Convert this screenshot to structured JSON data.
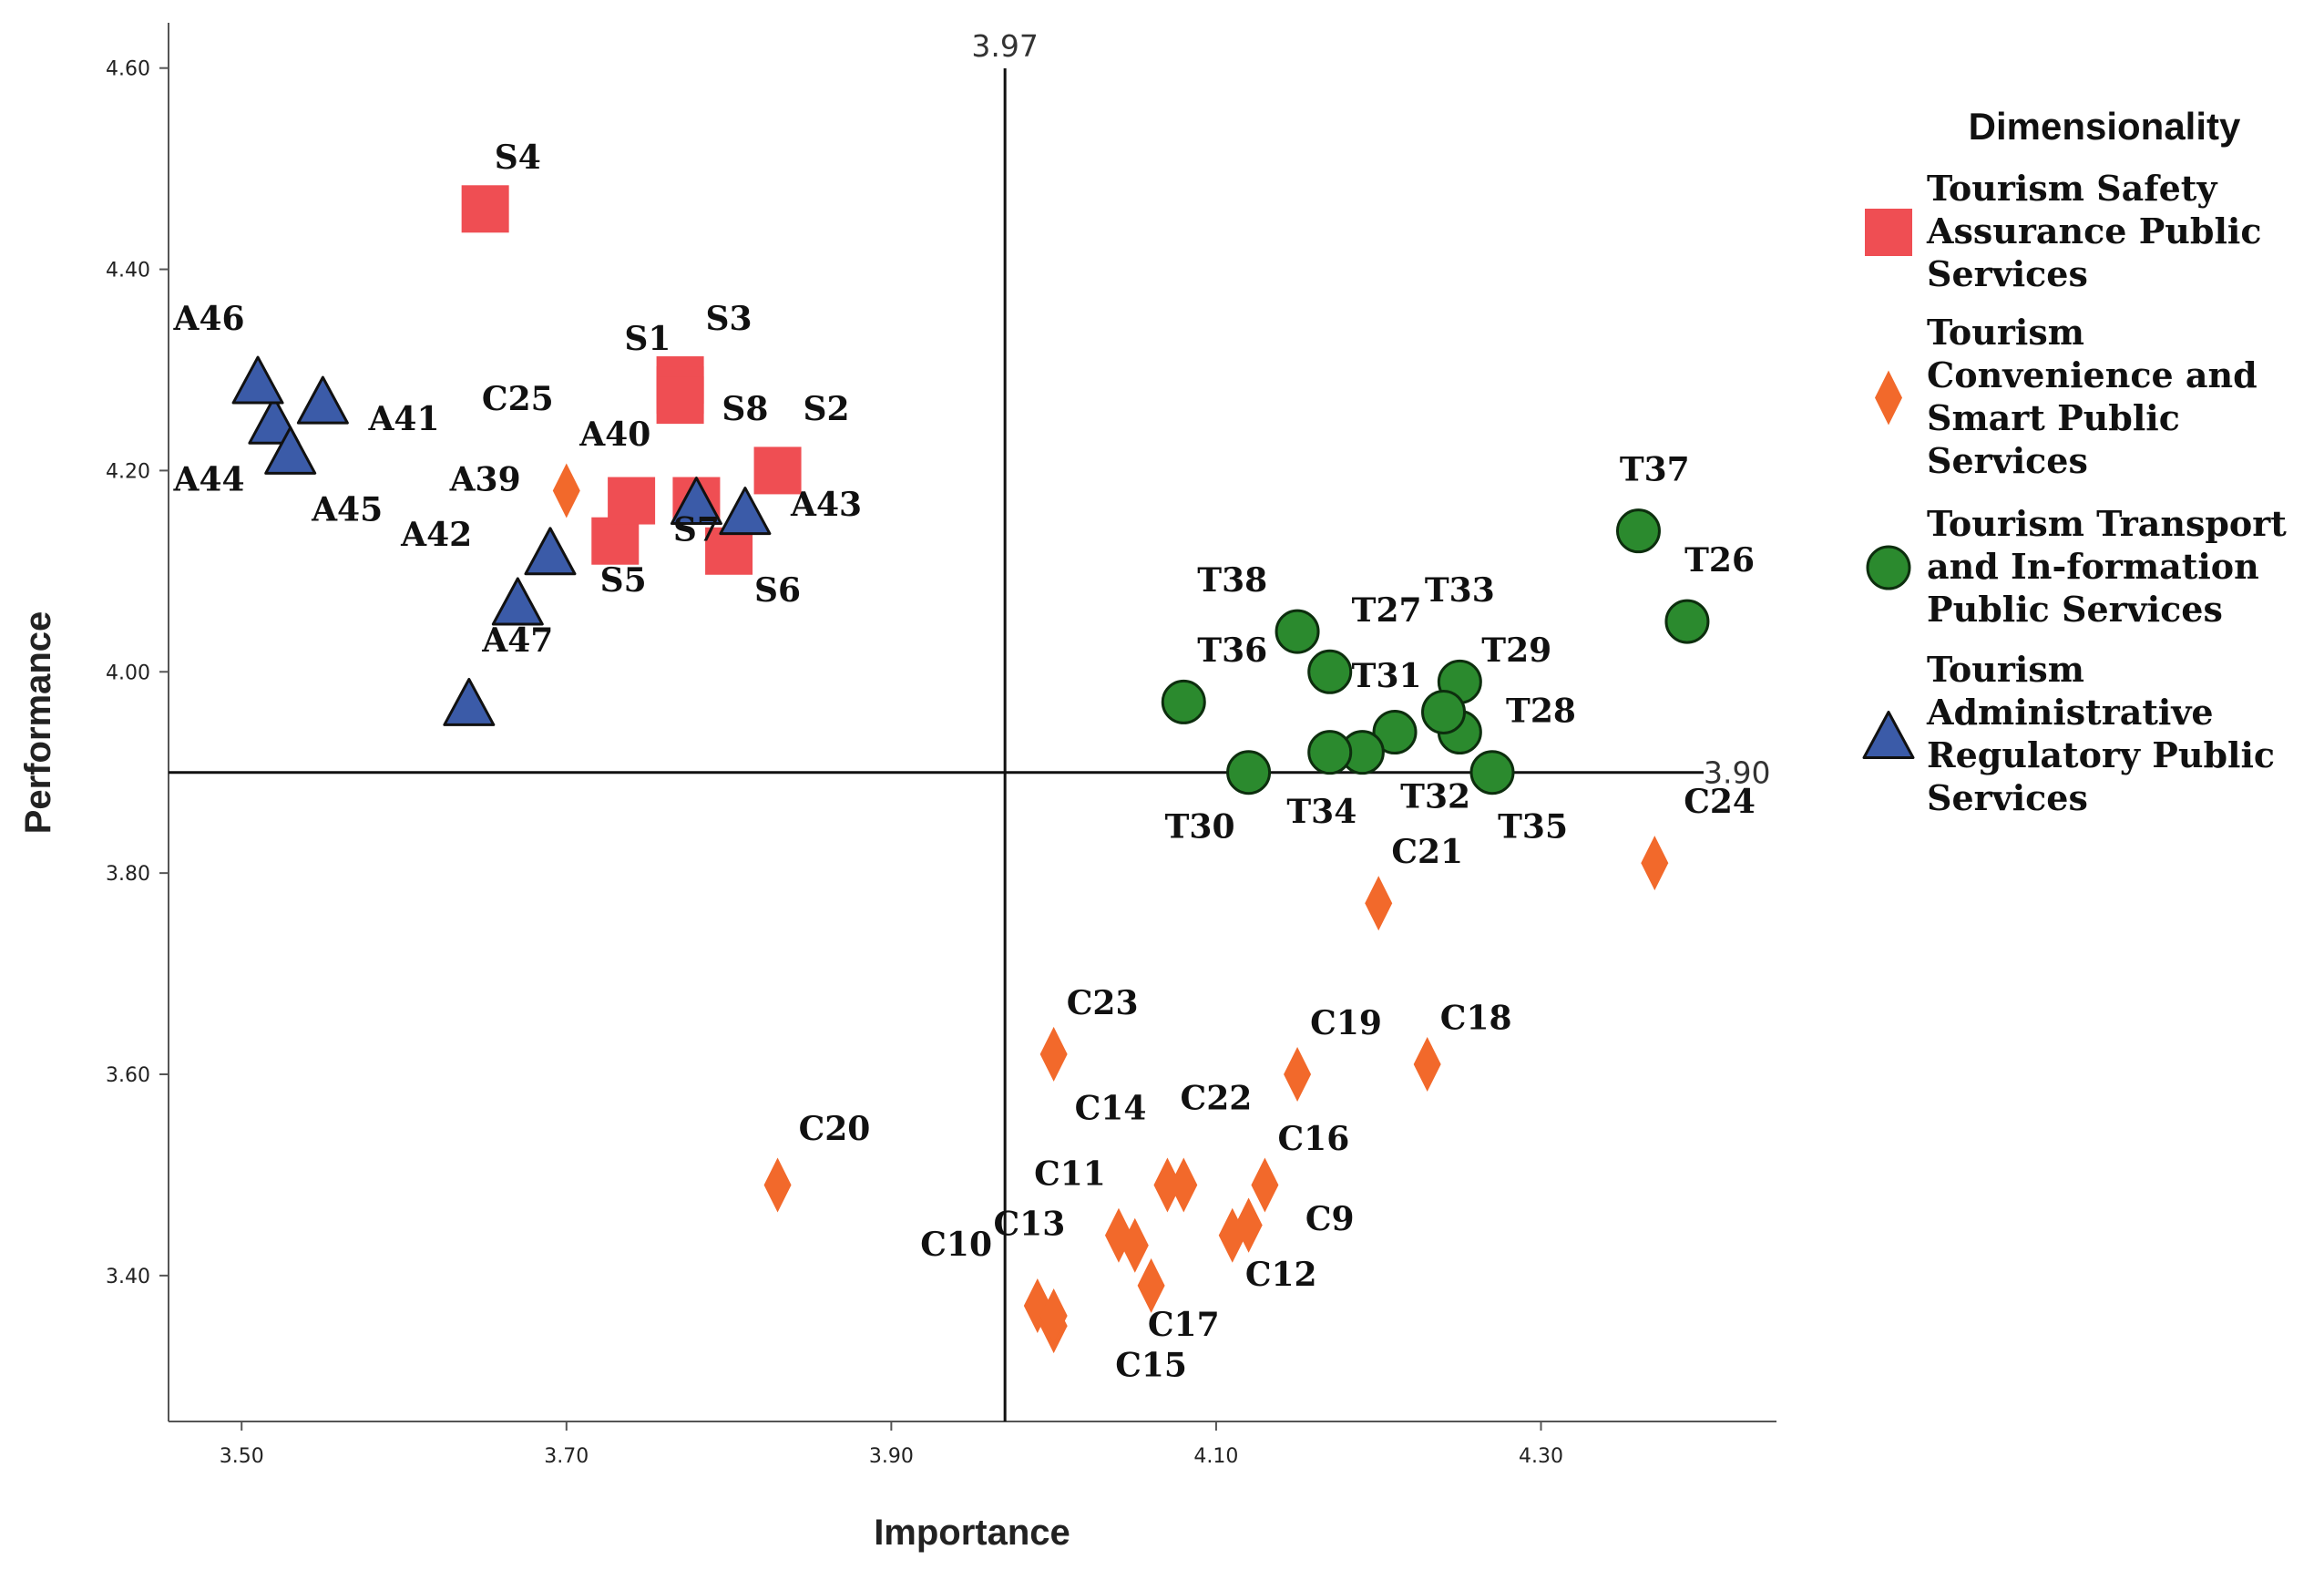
{
  "chart_data": {
    "type": "scatter",
    "title": "",
    "xlabel": "Importance",
    "ylabel": "Performance",
    "xlim": [
      3.455,
      4.445
    ],
    "ylim": [
      3.255,
      4.645
    ],
    "x_ticks": [
      "3.50",
      "3.70",
      "3.90",
      "4.10",
      "4.30"
    ],
    "x_tick_values": [
      3.5,
      3.7,
      3.9,
      4.1,
      4.3
    ],
    "y_ticks": [
      "4.60",
      "4.40",
      "4.20",
      "4.00",
      "3.80",
      "3.60",
      "3.40"
    ],
    "y_tick_values": [
      4.6,
      4.4,
      4.2,
      4.0,
      3.8,
      3.6,
      3.4
    ],
    "ref_lines": {
      "x": 3.97,
      "x_label": "3.97",
      "y": 3.9,
      "y_label": "3.90"
    },
    "legend": {
      "title": "Dimensionality",
      "position": "right",
      "entries": [
        {
          "series": "S",
          "lines": [
            "Tourism Safety",
            "Assurance Public",
            "Services"
          ]
        },
        {
          "series": "C",
          "lines": [
            "Tourism",
            "Convenience and",
            "Smart Public",
            "Services"
          ]
        },
        {
          "series": "T",
          "lines": [
            "Tourism Transport",
            "and In-formation",
            "Public Services"
          ]
        },
        {
          "series": "A",
          "lines": [
            "Tourism",
            "Administrative",
            "Regulatory Public",
            "Services"
          ]
        }
      ]
    },
    "series": [
      {
        "key": "S",
        "name": "Tourism Safety Assurance Public Services",
        "marker": "square",
        "color": "#EF4E53",
        "points": [
          {
            "label": "S1",
            "x": 3.77,
            "y": 4.29
          },
          {
            "label": "S2",
            "x": 3.83,
            "y": 4.2
          },
          {
            "label": "S3",
            "x": 3.77,
            "y": 4.28
          },
          {
            "label": "S4",
            "x": 3.65,
            "y": 4.46
          },
          {
            "label": "S5",
            "x": 3.73,
            "y": 4.13
          },
          {
            "label": "S6",
            "x": 3.8,
            "y": 4.12
          },
          {
            "label": "S7",
            "x": 3.74,
            "y": 4.17
          },
          {
            "label": "S8",
            "x": 3.77,
            "y": 4.27
          },
          {
            "label": "",
            "x": 3.78,
            "y": 4.17
          }
        ]
      },
      {
        "key": "C",
        "name": "Tourism Convenience and Smart Public Services",
        "marker": "diamond",
        "color": "#F2692B",
        "points": [
          {
            "label": "C9",
            "x": 4.12,
            "y": 3.45
          },
          {
            "label": "C10",
            "x": 3.99,
            "y": 3.37
          },
          {
            "label": "C11",
            "x": 4.07,
            "y": 3.49
          },
          {
            "label": "C12",
            "x": 4.11,
            "y": 3.44
          },
          {
            "label": "C13",
            "x": 4.04,
            "y": 3.44
          },
          {
            "label": "C14",
            "x": 4.08,
            "y": 3.49
          },
          {
            "label": "C15",
            "x": 4.0,
            "y": 3.35
          },
          {
            "label": "C16",
            "x": 4.13,
            "y": 3.49
          },
          {
            "label": "C17",
            "x": 4.06,
            "y": 3.39
          },
          {
            "label": "C18",
            "x": 4.23,
            "y": 3.61
          },
          {
            "label": "C19",
            "x": 4.15,
            "y": 3.6
          },
          {
            "label": "C20",
            "x": 3.83,
            "y": 3.49
          },
          {
            "label": "C21",
            "x": 4.2,
            "y": 3.77
          },
          {
            "label": "C22",
            "x": 4.12,
            "y": 3.45
          },
          {
            "label": "C23",
            "x": 4.0,
            "y": 3.62
          },
          {
            "label": "C24",
            "x": 4.37,
            "y": 3.81
          },
          {
            "label": "C25",
            "x": 3.7,
            "y": 4.18
          },
          {
            "label": "",
            "x": 4.05,
            "y": 3.43
          },
          {
            "label": "",
            "x": 4.0,
            "y": 3.36
          }
        ]
      },
      {
        "key": "T",
        "name": "Tourism Transport and In-formation Public Services",
        "marker": "circle",
        "color": "#2B8A2E",
        "points": [
          {
            "label": "T26",
            "x": 4.39,
            "y": 4.05
          },
          {
            "label": "T27",
            "x": 4.17,
            "y": 4.0
          },
          {
            "label": "T28",
            "x": 4.25,
            "y": 3.94
          },
          {
            "label": "T29",
            "x": 4.25,
            "y": 3.99
          },
          {
            "label": "T30",
            "x": 4.12,
            "y": 3.9
          },
          {
            "label": "T31",
            "x": 4.21,
            "y": 3.94
          },
          {
            "label": "T32",
            "x": 4.19,
            "y": 3.92
          },
          {
            "label": "T33",
            "x": 4.24,
            "y": 3.96
          },
          {
            "label": "T34",
            "x": 4.17,
            "y": 3.92
          },
          {
            "label": "T35",
            "x": 4.27,
            "y": 3.9
          },
          {
            "label": "T36",
            "x": 4.08,
            "y": 3.97
          },
          {
            "label": "T37",
            "x": 4.36,
            "y": 4.14
          },
          {
            "label": "T38",
            "x": 4.15,
            "y": 4.04
          }
        ]
      },
      {
        "key": "A",
        "name": "Tourism Administrative Regulatory Public Services",
        "marker": "triangle",
        "color": "#3B5BA8",
        "points": [
          {
            "label": "A39",
            "x": 3.78,
            "y": 4.17
          },
          {
            "label": "A40",
            "x": 3.69,
            "y": 4.12
          },
          {
            "label": "A41",
            "x": 3.55,
            "y": 4.27
          },
          {
            "label": "A42",
            "x": 3.67,
            "y": 4.07
          },
          {
            "label": "A43",
            "x": 3.81,
            "y": 4.16
          },
          {
            "label": "A44",
            "x": 3.52,
            "y": 4.25
          },
          {
            "label": "A45",
            "x": 3.53,
            "y": 4.22
          },
          {
            "label": "A46",
            "x": 3.51,
            "y": 4.29
          },
          {
            "label": "A47",
            "x": 3.64,
            "y": 3.97
          }
        ]
      }
    ],
    "label_positions": [
      {
        "text": "S4",
        "x": 3.67,
        "y": 4.5
      },
      {
        "text": "S1",
        "x": 3.75,
        "y": 4.32
      },
      {
        "text": "S3",
        "x": 3.8,
        "y": 4.34
      },
      {
        "text": "S8",
        "x": 3.81,
        "y": 4.25
      },
      {
        "text": "S2",
        "x": 3.86,
        "y": 4.25
      },
      {
        "text": "S7",
        "x": 3.78,
        "y": 4.13
      },
      {
        "text": "S5",
        "x": 3.735,
        "y": 4.08
      },
      {
        "text": "S6",
        "x": 3.83,
        "y": 4.07
      },
      {
        "text": "C25",
        "x": 3.67,
        "y": 4.26
      },
      {
        "text": "A40",
        "x": 3.73,
        "y": 4.225
      },
      {
        "text": "A39",
        "x": 3.65,
        "y": 4.18
      },
      {
        "text": "A42",
        "x": 3.62,
        "y": 4.125
      },
      {
        "text": "A43",
        "x": 3.86,
        "y": 4.155
      },
      {
        "text": "A47",
        "x": 3.67,
        "y": 4.02
      },
      {
        "text": "A46",
        "x": 3.48,
        "y": 4.34
      },
      {
        "text": "A41",
        "x": 3.6,
        "y": 4.24
      },
      {
        "text": "A44",
        "x": 3.48,
        "y": 4.18
      },
      {
        "text": "A45",
        "x": 3.565,
        "y": 4.15
      },
      {
        "text": "T37",
        "x": 4.37,
        "y": 4.19
      },
      {
        "text": "T26",
        "x": 4.41,
        "y": 4.1
      },
      {
        "text": "T38",
        "x": 4.11,
        "y": 4.08
      },
      {
        "text": "T27",
        "x": 4.205,
        "y": 4.05
      },
      {
        "text": "T33",
        "x": 4.25,
        "y": 4.07
      },
      {
        "text": "T36",
        "x": 4.11,
        "y": 4.01
      },
      {
        "text": "T29",
        "x": 4.285,
        "y": 4.01
      },
      {
        "text": "T31",
        "x": 4.205,
        "y": 3.985
      },
      {
        "text": "T28",
        "x": 4.3,
        "y": 3.95
      },
      {
        "text": "T32",
        "x": 4.235,
        "y": 3.865
      },
      {
        "text": "T34",
        "x": 4.165,
        "y": 3.85
      },
      {
        "text": "T35",
        "x": 4.295,
        "y": 3.835
      },
      {
        "text": "T30",
        "x": 4.09,
        "y": 3.835
      },
      {
        "text": "C24",
        "x": 4.41,
        "y": 3.86
      },
      {
        "text": "C21",
        "x": 4.23,
        "y": 3.81
      },
      {
        "text": "C23",
        "x": 4.03,
        "y": 3.66
      },
      {
        "text": "C19",
        "x": 4.18,
        "y": 3.64
      },
      {
        "text": "C18",
        "x": 4.26,
        "y": 3.645
      },
      {
        "text": "C20",
        "x": 3.865,
        "y": 3.535
      },
      {
        "text": "C14",
        "x": 4.035,
        "y": 3.555
      },
      {
        "text": "C22",
        "x": 4.1,
        "y": 3.565
      },
      {
        "text": "C16",
        "x": 4.16,
        "y": 3.525
      },
      {
        "text": "C11",
        "x": 4.01,
        "y": 3.49
      },
      {
        "text": "C9",
        "x": 4.17,
        "y": 3.445
      },
      {
        "text": "C13",
        "x": 3.985,
        "y": 3.44
      },
      {
        "text": "C10",
        "x": 3.94,
        "y": 3.42
      },
      {
        "text": "C12",
        "x": 4.14,
        "y": 3.39
      },
      {
        "text": "C17",
        "x": 4.08,
        "y": 3.34
      },
      {
        "text": "C15",
        "x": 4.06,
        "y": 3.3
      }
    ]
  }
}
